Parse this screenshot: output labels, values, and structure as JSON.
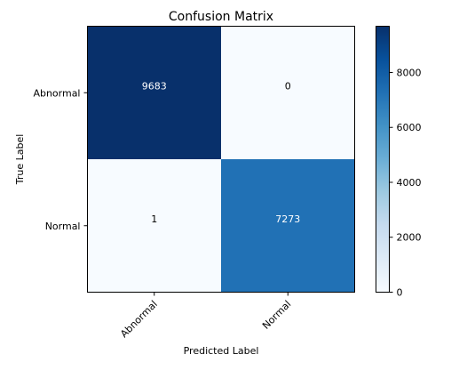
{
  "chart_data": {
    "type": "heatmap",
    "title": "Confusion Matrix",
    "xlabel": "Predicted Label",
    "ylabel": "True Label",
    "x_categories": [
      "Abnormal",
      "Normal"
    ],
    "y_categories": [
      "Abnormal",
      "Normal"
    ],
    "values": [
      [
        9683,
        0
      ],
      [
        1,
        7273
      ]
    ],
    "colormap": "Blues",
    "colorbar": {
      "min": 0,
      "max": 9683,
      "ticks": [
        0,
        2000,
        4000,
        6000,
        8000
      ],
      "tick_labels": [
        "0",
        "2000",
        "4000",
        "6000",
        "8000"
      ]
    },
    "text_color_dark": "#ffffff",
    "text_color_light": "#000000",
    "grid": false
  }
}
